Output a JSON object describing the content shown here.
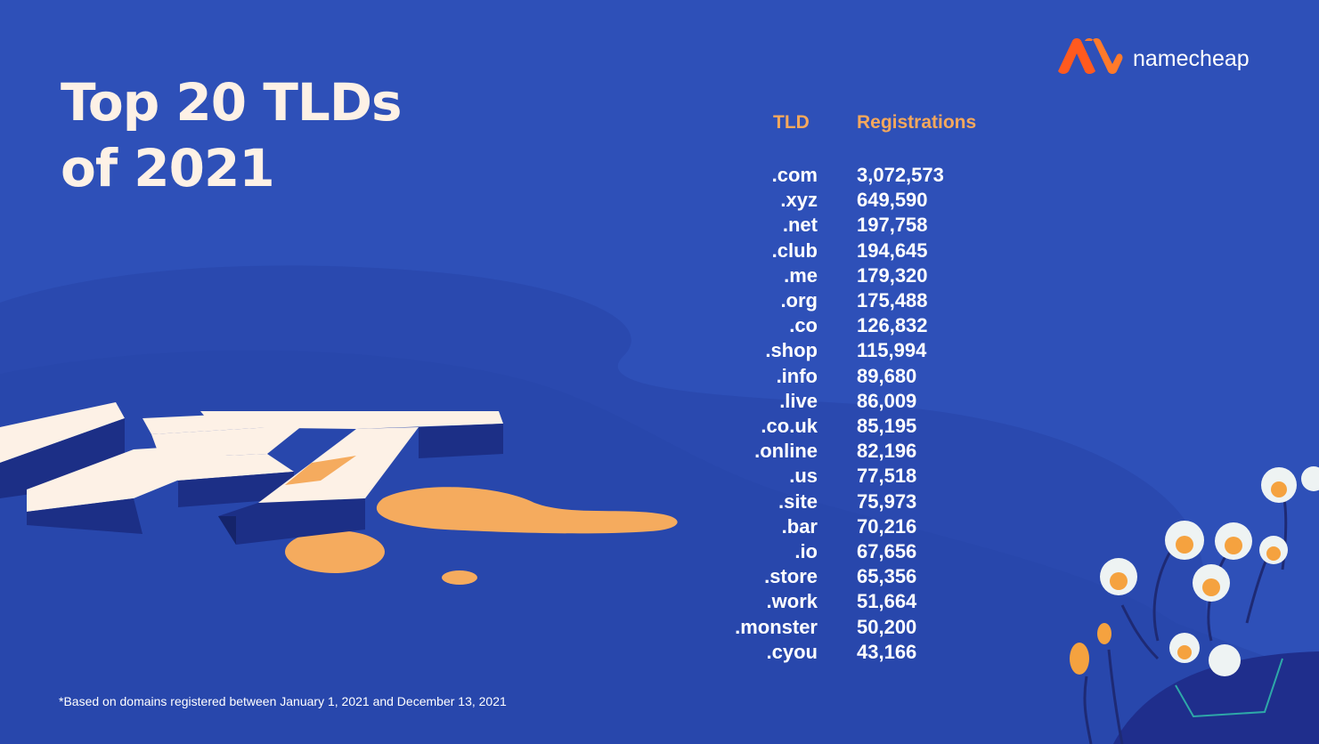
{
  "title": {
    "line1": "Top 20 TLDs",
    "line2": "of 2021"
  },
  "brand": {
    "name": "namecheap"
  },
  "colors": {
    "background": "#2e50b8",
    "accent": "#f5a85c",
    "cream": "#fdf1e6",
    "logo": "#ff5a1f"
  },
  "table": {
    "col_tld": "TLD",
    "col_registrations": "Registrations",
    "rows": [
      {
        "tld": ".com",
        "registrations": "3,072,573"
      },
      {
        "tld": ".xyz",
        "registrations": "649,590"
      },
      {
        "tld": ".net",
        "registrations": "197,758"
      },
      {
        "tld": ".club",
        "registrations": "194,645"
      },
      {
        "tld": ".me",
        "registrations": "179,320"
      },
      {
        "tld": ".org",
        "registrations": "175,488"
      },
      {
        "tld": ".co",
        "registrations": "126,832"
      },
      {
        "tld": ".shop",
        "registrations": "115,994"
      },
      {
        "tld": ".info",
        "registrations": "89,680"
      },
      {
        "tld": ".live",
        "registrations": "86,009"
      },
      {
        "tld": ".co.uk",
        "registrations": "85,195"
      },
      {
        "tld": ".online",
        "registrations": "82,196"
      },
      {
        "tld": ".us",
        "registrations": "77,518"
      },
      {
        "tld": ".site",
        "registrations": "75,973"
      },
      {
        "tld": ".bar",
        "registrations": "70,216"
      },
      {
        "tld": ".io",
        "registrations": "67,656"
      },
      {
        "tld": ".store",
        "registrations": "65,356"
      },
      {
        "tld": ".work",
        "registrations": "51,664"
      },
      {
        "tld": ".monster",
        "registrations": "50,200"
      },
      {
        "tld": ".cyou",
        "registrations": "43,166"
      }
    ]
  },
  "chart_data": {
    "type": "table",
    "columns": [
      "TLD",
      "Registrations"
    ],
    "categories": [
      ".com",
      ".xyz",
      ".net",
      ".club",
      ".me",
      ".org",
      ".co",
      ".shop",
      ".info",
      ".live",
      ".co.uk",
      ".online",
      ".us",
      ".site",
      ".bar",
      ".io",
      ".store",
      ".work",
      ".monster",
      ".cyou"
    ],
    "values": [
      3072573,
      649590,
      197758,
      194645,
      179320,
      175488,
      126832,
      115994,
      89680,
      86009,
      85195,
      82196,
      77518,
      75973,
      70216,
      67656,
      65356,
      51664,
      50200,
      43166
    ],
    "title": "Top 20 TLDs of 2021"
  },
  "footnote": "*Based on domains registered between January 1, 2021 and December 13, 2021",
  "illustration": {
    "letters": "NET",
    "decor": "flowers"
  }
}
